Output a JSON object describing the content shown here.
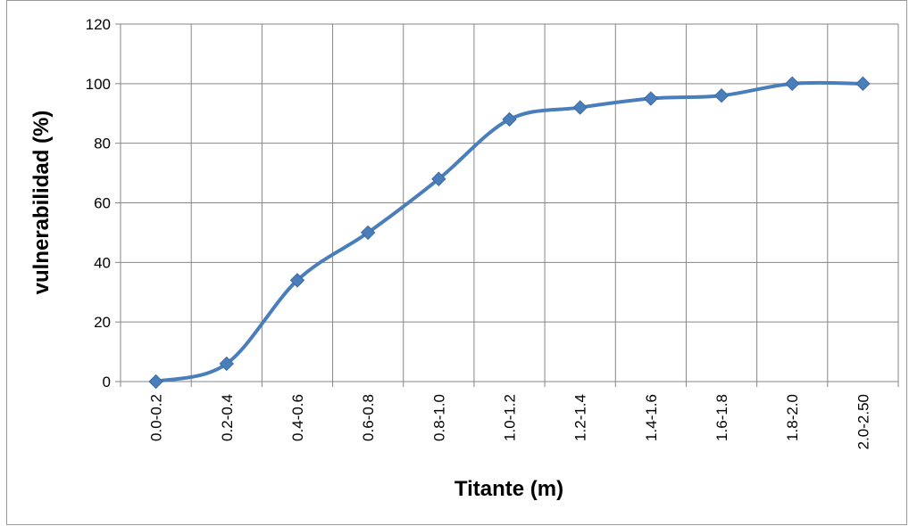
{
  "chart_data": {
    "type": "line",
    "title": "",
    "xlabel": "Titante (m)",
    "ylabel": "vulnerabilidad (%)",
    "categories": [
      "0.0-0.2",
      "0.2-0.4",
      "0.4-0.6",
      "0.6-0.8",
      "0.8-1.0",
      "1.0-1.2",
      "1.2-1.4",
      "1.4-1.6",
      "1.6-1.8",
      "1.8-2.0",
      "2.0-2.50"
    ],
    "series": [
      {
        "values": [
          0,
          6,
          34,
          50,
          68,
          88,
          92,
          95,
          96,
          100,
          100
        ],
        "color": "#4A7EBB",
        "marker": "diamond",
        "smooth": true
      }
    ],
    "ylim": [
      0,
      120
    ],
    "yticks": [
      0,
      20,
      40,
      60,
      80,
      100,
      120
    ],
    "grid": true,
    "legend": "none"
  }
}
